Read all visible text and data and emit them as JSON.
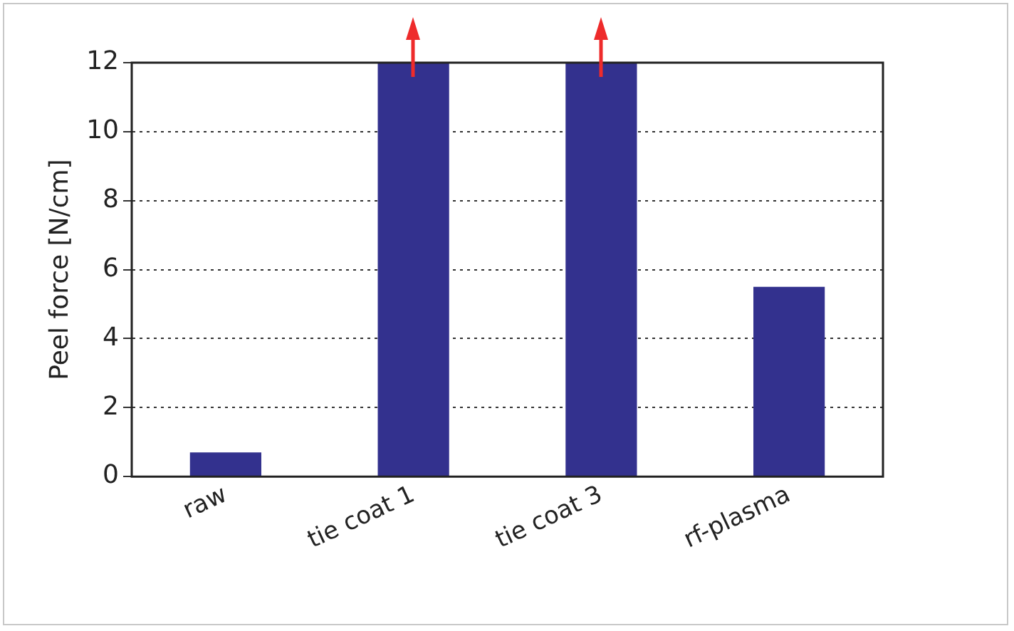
{
  "chart_data": {
    "type": "bar",
    "ylabel": "Peel force [N/cm]",
    "categories": [
      "raw",
      "tie coat 1",
      "tie coat 3",
      "rf-plasma"
    ],
    "values": [
      0.7,
      12,
      12,
      5.5
    ],
    "color": "#33318e",
    "ylim": [
      0,
      12
    ],
    "yticks": [
      0,
      2,
      4,
      6,
      8,
      10,
      12
    ],
    "grid": "y"
  }
}
